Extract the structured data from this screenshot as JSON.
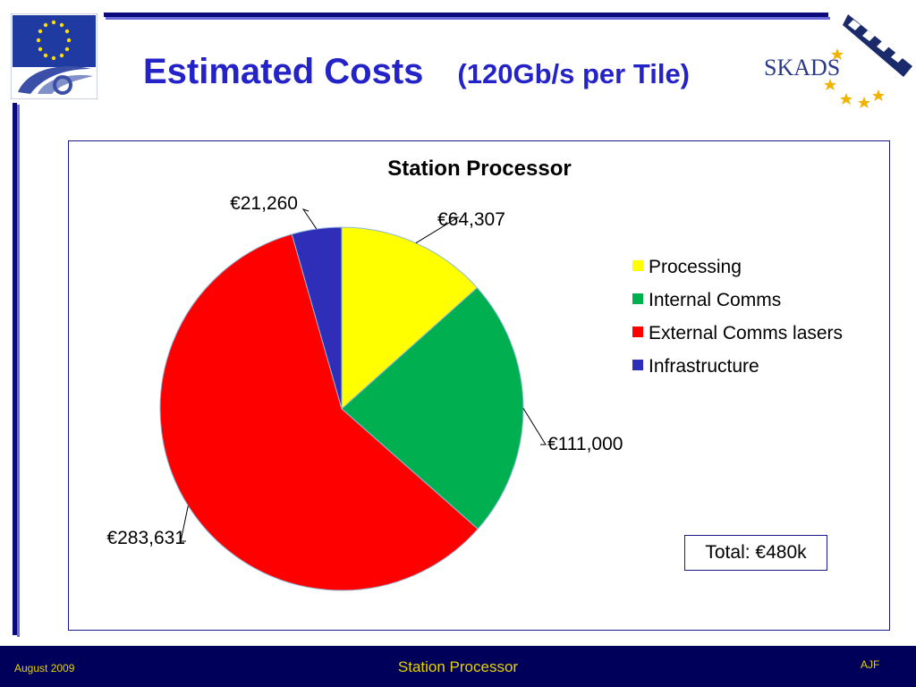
{
  "header": {
    "title": "Estimated Costs",
    "subtitle": "(120Gb/s per Tile)",
    "logo_text": "SKADS"
  },
  "chart_data": {
    "type": "pie",
    "title": "Station Processor",
    "categories": [
      "Processing",
      "Internal Comms",
      "External Comms lasers",
      "Infrastructure"
    ],
    "values": [
      64307,
      111000,
      283631,
      21260
    ],
    "data_labels": [
      "€64,307",
      "€111,000",
      "€283,631",
      "€21,260"
    ],
    "colors": [
      "#ffff00",
      "#00b050",
      "#ff0000",
      "#2e2eb8"
    ],
    "legend_position": "right"
  },
  "total_note": "Total: €480k",
  "footer": {
    "date": "August 2009",
    "title": "Station Processor",
    "author": "AJF"
  }
}
